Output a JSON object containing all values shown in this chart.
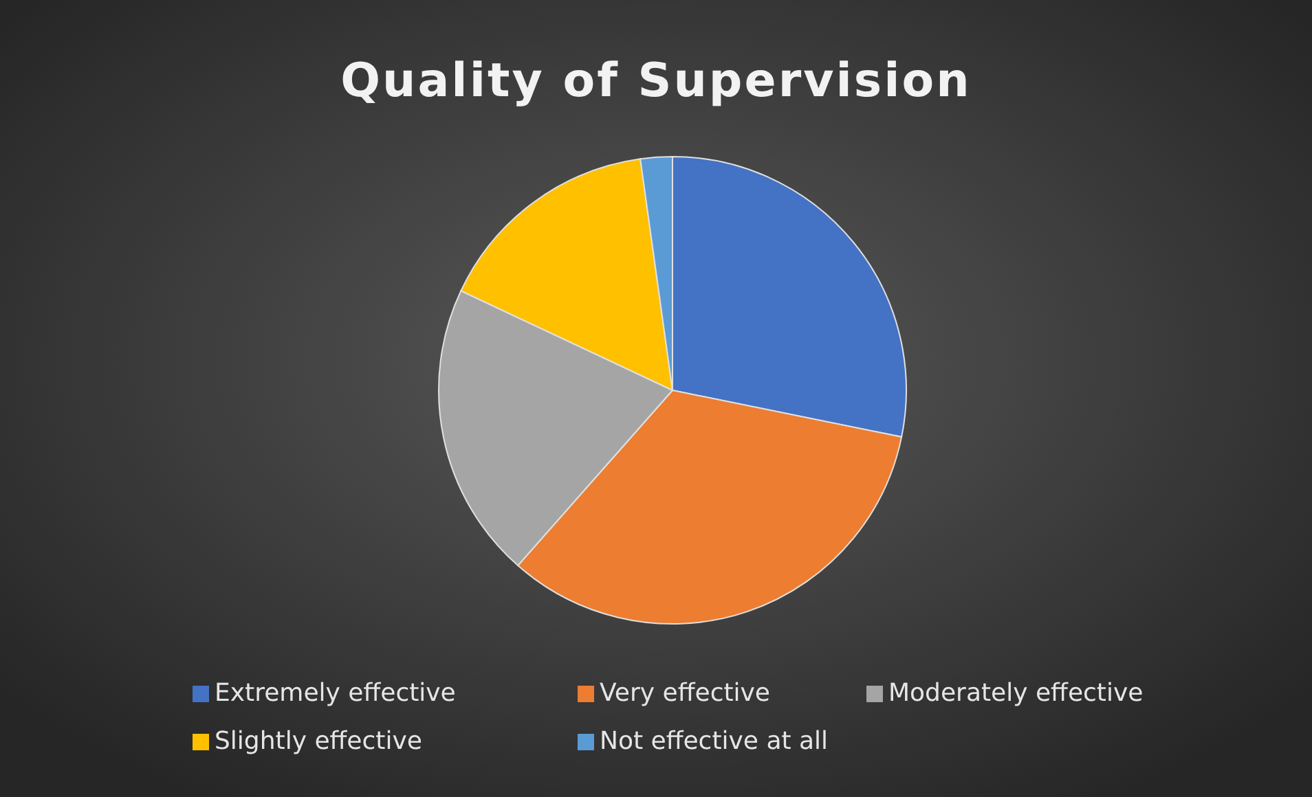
{
  "chart_data": {
    "type": "pie",
    "title": "Quality of Supervision",
    "categories": [
      "Extremely effective",
      "Very effective",
      "Moderately effective",
      "Slightly effective",
      "Not effective at all"
    ],
    "values": [
      28.2,
      33.3,
      20.5,
      15.8,
      2.2
    ],
    "colors": [
      "#4472c4",
      "#ed7d31",
      "#a5a5a5",
      "#ffc000",
      "#5b9bd5"
    ],
    "legend": "bottom"
  }
}
